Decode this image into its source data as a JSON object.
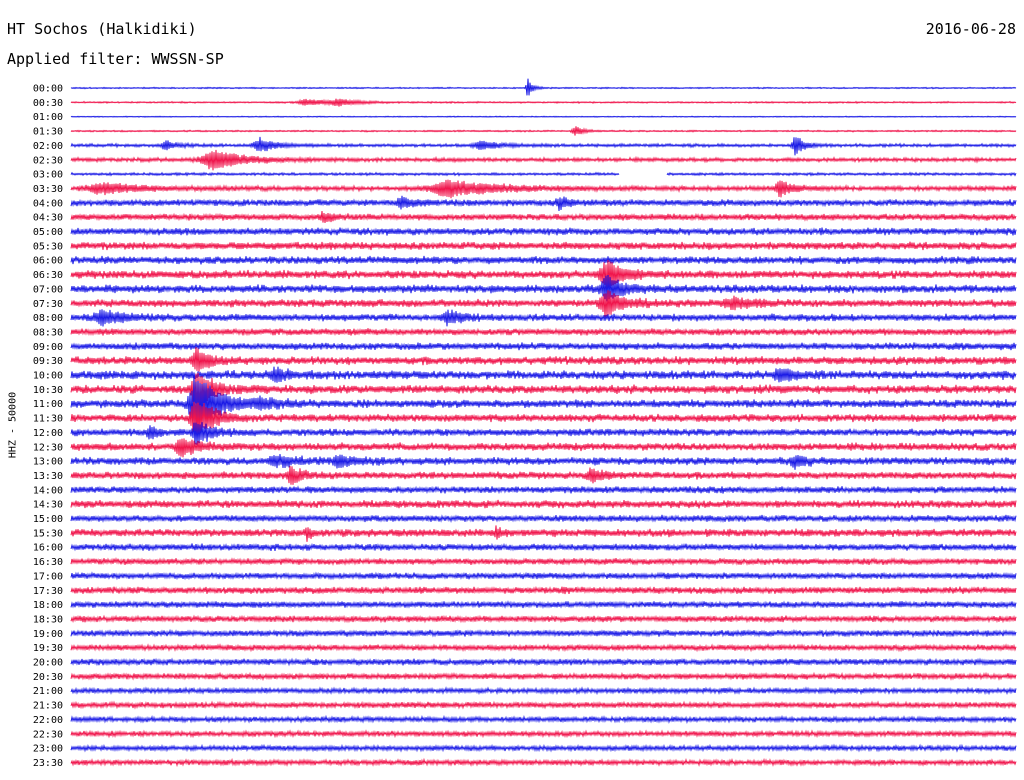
{
  "header": {
    "title": "HT Sochos (Halkidiki)",
    "date": "2016-06-28",
    "filter": "Applied filter: WWSSN-SP"
  },
  "colors": {
    "blue": "#1a1ae6",
    "red": "#f0144b"
  },
  "chart_data": {
    "type": "line",
    "ylabel": "HHZ - 50000",
    "trace_colors_alternate": [
      "blue",
      "red"
    ],
    "categories": [
      "00:00",
      "00:30",
      "01:00",
      "01:30",
      "02:00",
      "02:30",
      "03:00",
      "03:30",
      "04:00",
      "04:30",
      "05:00",
      "05:30",
      "06:00",
      "06:30",
      "07:00",
      "07:30",
      "08:00",
      "08:30",
      "09:00",
      "09:30",
      "10:00",
      "10:30",
      "11:00",
      "11:30",
      "12:00",
      "12:30",
      "13:00",
      "13:30",
      "14:00",
      "14:30",
      "15:00",
      "15:30",
      "16:00",
      "16:30",
      "17:00",
      "17:30",
      "18:00",
      "18:30",
      "19:00",
      "19:30",
      "20:00",
      "20:30",
      "21:00",
      "21:30",
      "22:00",
      "22:30",
      "23:00",
      "23:30"
    ],
    "noise_level": [
      0.5,
      0.6,
      0.4,
      0.6,
      1.2,
      1.5,
      1.0,
      1.8,
      2.5,
      2.5,
      2.8,
      3.0,
      3.0,
      3.2,
      3.2,
      3.0,
      2.8,
      2.6,
      2.8,
      3.2,
      3.4,
      3.4,
      3.2,
      3.0,
      2.8,
      3.0,
      3.0,
      2.8,
      2.6,
      3.0,
      2.6,
      3.0,
      2.6,
      2.4,
      2.4,
      2.6,
      2.4,
      2.4,
      2.4,
      2.2,
      2.4,
      2.2,
      2.0,
      2.2,
      2.0,
      2.0,
      2.0,
      2.0
    ],
    "events": [
      {
        "row": 0,
        "minute": 29,
        "amp": 10,
        "width": 0.3
      },
      {
        "row": 1,
        "minute": 15,
        "amp": 3,
        "width": 1.5
      },
      {
        "row": 1,
        "minute": 17,
        "amp": 3,
        "width": 1.2
      },
      {
        "row": 3,
        "minute": 32,
        "amp": 5,
        "width": 0.5
      },
      {
        "row": 4,
        "minute": 6,
        "amp": 5,
        "width": 0.6
      },
      {
        "row": 4,
        "minute": 12,
        "amp": 7,
        "width": 1.0
      },
      {
        "row": 4,
        "minute": 26,
        "amp": 4,
        "width": 1.2
      },
      {
        "row": 4,
        "minute": 46,
        "amp": 10,
        "width": 0.5
      },
      {
        "row": 5,
        "minute": 9,
        "amp": 9,
        "width": 2.0
      },
      {
        "row": 7,
        "minute": 2,
        "amp": 5,
        "width": 2.5
      },
      {
        "row": 7,
        "minute": 24,
        "amp": 8,
        "width": 3.0
      },
      {
        "row": 7,
        "minute": 45,
        "amp": 8,
        "width": 0.8
      },
      {
        "row": 8,
        "minute": 21,
        "amp": 5,
        "width": 0.8
      },
      {
        "row": 8,
        "minute": 31,
        "amp": 5,
        "width": 0.6
      },
      {
        "row": 9,
        "minute": 16,
        "amp": 5,
        "width": 0.6
      },
      {
        "row": 13,
        "minute": 34,
        "amp": 14,
        "width": 1.0
      },
      {
        "row": 14,
        "minute": 34,
        "amp": 12,
        "width": 1.0
      },
      {
        "row": 15,
        "minute": 34,
        "amp": 12,
        "width": 1.0
      },
      {
        "row": 15,
        "minute": 42,
        "amp": 5,
        "width": 1.2
      },
      {
        "row": 16,
        "minute": 2,
        "amp": 7,
        "width": 1.2
      },
      {
        "row": 16,
        "minute": 24,
        "amp": 6,
        "width": 0.8
      },
      {
        "row": 19,
        "minute": 8,
        "amp": 10,
        "width": 0.8
      },
      {
        "row": 20,
        "minute": 13,
        "amp": 6,
        "width": 0.8
      },
      {
        "row": 20,
        "minute": 45,
        "amp": 6,
        "width": 0.8
      },
      {
        "row": 21,
        "minute": 8,
        "amp": 22,
        "width": 0.8
      },
      {
        "row": 22,
        "minute": 8,
        "amp": 30,
        "width": 1.2
      },
      {
        "row": 22,
        "minute": 12,
        "amp": 5,
        "width": 1.0
      },
      {
        "row": 23,
        "minute": 8,
        "amp": 20,
        "width": 1.0
      },
      {
        "row": 24,
        "minute": 5,
        "amp": 6,
        "width": 0.5
      },
      {
        "row": 24,
        "minute": 8,
        "amp": 12,
        "width": 0.8
      },
      {
        "row": 25,
        "minute": 7,
        "amp": 8,
        "width": 1.0
      },
      {
        "row": 26,
        "minute": 13,
        "amp": 5,
        "width": 1.2
      },
      {
        "row": 26,
        "minute": 17,
        "amp": 4,
        "width": 1.2
      },
      {
        "row": 26,
        "minute": 46,
        "amp": 5,
        "width": 0.8
      },
      {
        "row": 27,
        "minute": 14,
        "amp": 9,
        "width": 0.6
      },
      {
        "row": 27,
        "minute": 33,
        "amp": 6,
        "width": 0.8
      },
      {
        "row": 31,
        "minute": 15,
        "amp": 6,
        "width": 0.3
      },
      {
        "row": 31,
        "minute": 27,
        "amp": 6,
        "width": 0.3
      }
    ],
    "gaps": [
      {
        "row": 6,
        "from_minute": 34.8,
        "to_minute": 37.8
      }
    ]
  }
}
